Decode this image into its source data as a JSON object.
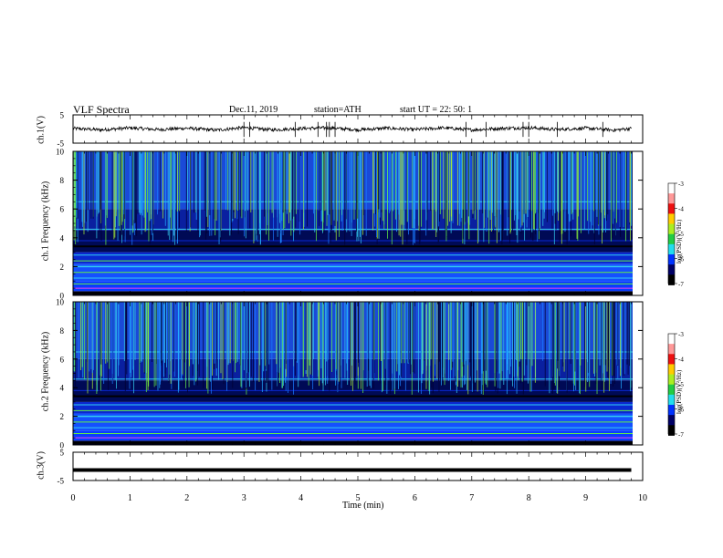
{
  "header": {
    "title": "VLF Spectra",
    "date": "Dec.11, 2019",
    "station": "station=ATH",
    "start": "start UT = 22: 50: 1"
  },
  "chart_data": [
    {
      "type": "line",
      "title": "",
      "ylabel": "ch.1(V)",
      "ylim": [
        -5,
        5
      ],
      "yticks": [
        "5",
        "-5"
      ],
      "x": [
        0,
        0.5,
        1,
        1.5,
        2,
        2.5,
        3,
        3.5,
        4,
        4.5,
        5,
        5.5,
        6,
        6.5,
        7,
        7.5,
        8,
        8.5,
        9,
        9.5,
        9.8
      ],
      "values": [
        0.2,
        -0.3,
        0.4,
        -0.2,
        0.3,
        -0.4,
        0.5,
        -0.3,
        0.2,
        0.4,
        -0.3,
        0.3,
        -0.2,
        0.4,
        -0.3,
        0.2,
        0.5,
        -0.2,
        0.3,
        -0.4,
        0.2
      ],
      "spikes_x": [
        3.0,
        3.1,
        3.9,
        4.3,
        4.45,
        4.5,
        4.6,
        6.9,
        7.25,
        7.9,
        8.0,
        8.5,
        9.3
      ],
      "grid": false
    },
    {
      "type": "heatmap",
      "title": "",
      "ylabel": "ch.1 Frequency (kHz)",
      "ylim": [
        0,
        10
      ],
      "yticks": [
        "0",
        "2",
        "4",
        "6",
        "8",
        "10"
      ],
      "colorbar": {
        "label": "log(PSD)(V²/Hz)",
        "ticks": [
          "-3",
          "-4",
          "-5",
          "-6",
          "-7"
        ],
        "range": [
          -7,
          -3
        ]
      }
    },
    {
      "type": "heatmap",
      "title": "",
      "ylabel": "ch.2 Frequency (kHz)",
      "ylim": [
        0,
        10
      ],
      "yticks": [
        "0",
        "2",
        "4",
        "6",
        "8",
        "10"
      ],
      "colorbar": {
        "label": "log(PSD)(V²/Hz)",
        "ticks": [
          "-3",
          "-4",
          "-5",
          "-6",
          "-7"
        ],
        "range": [
          -7,
          -3
        ]
      }
    },
    {
      "type": "line",
      "title": "",
      "ylabel": "ch.3(V)",
      "ylim": [
        -5,
        5
      ],
      "yticks": [
        "5",
        "-5"
      ],
      "x": [
        0,
        9.8
      ],
      "values": [
        -1.3,
        -1.3
      ],
      "grid": false
    }
  ],
  "xaxis": {
    "label": "Time (min)",
    "ticks": [
      "0",
      "1",
      "2",
      "3",
      "4",
      "5",
      "6",
      "7",
      "8",
      "9",
      "10"
    ],
    "xlim": [
      0,
      10
    ]
  },
  "colors": {
    "background_low": "#000033",
    "mid_blue": "#0033ff",
    "cyan": "#33ccee",
    "green": "#66ee44",
    "line": "#000000"
  }
}
